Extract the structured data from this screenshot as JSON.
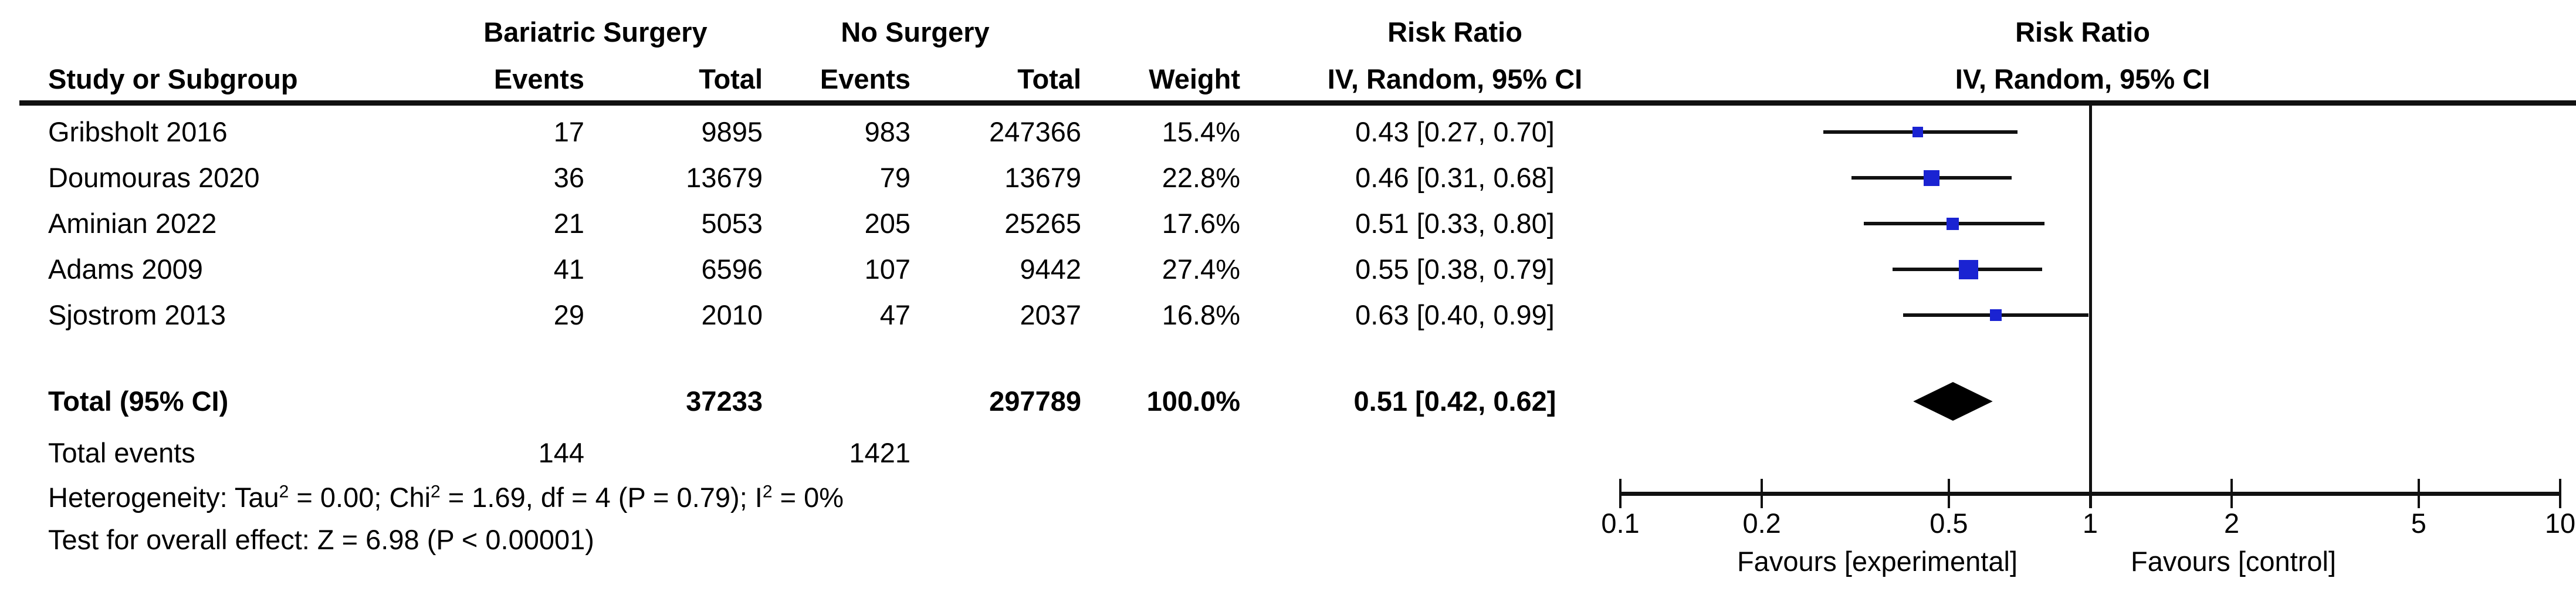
{
  "header": {
    "group1": "Bariatric Surgery",
    "group2": "No Surgery",
    "effect_title": "Risk Ratio",
    "effect_sub": "IV, Random, 95% CI",
    "plot_title": "Risk Ratio",
    "plot_sub": "IV, Random, 95% CI",
    "study_col": "Study or Subgroup",
    "events_col": "Events",
    "total_col": "Total",
    "events2_col": "Events",
    "total2_col": "Total",
    "weight_col": "Weight"
  },
  "totals": {
    "label": "Total (95% CI)",
    "total1": "37233",
    "total2": "297789",
    "weight": "100.0%",
    "ci_text": "0.51 [0.42, 0.62]",
    "events_label": "Total events",
    "events1": "144",
    "events2": "1421"
  },
  "footnotes": {
    "het_p1": "Heterogeneity: Tau",
    "het_s1": "2",
    "het_p2": " = 0.00; Chi",
    "het_s2": "2",
    "het_p3": " = 1.69, df = 4 (P = 0.79); I",
    "het_s3": "2",
    "het_p4": " = 0%",
    "test": "Test for overall effect: Z = 6.98 (P < 0.00001)"
  },
  "chart_data": {
    "type": "forest",
    "scale": "log",
    "x_axis_ticks": [
      0.1,
      0.2,
      0.5,
      1,
      2,
      5,
      10
    ],
    "null_line": 1,
    "favours_left": "Favours [experimental]",
    "favours_right": "Favours [control]",
    "marker_color": "#1a23d2",
    "studies": [
      {
        "name": "Gribsholt 2016",
        "events1": "17",
        "total1": "9895",
        "events2": "983",
        "total2": "247366",
        "weight": "15.4%",
        "weight_pct": 15.4,
        "rr": 0.43,
        "ci_low": 0.27,
        "ci_high": 0.7,
        "ci_text": "0.43 [0.27, 0.70]"
      },
      {
        "name": "Doumouras 2020",
        "events1": "36",
        "total1": "13679",
        "events2": "79",
        "total2": "13679",
        "weight": "22.8%",
        "weight_pct": 22.8,
        "rr": 0.46,
        "ci_low": 0.31,
        "ci_high": 0.68,
        "ci_text": "0.46 [0.31, 0.68]"
      },
      {
        "name": "Aminian 2022",
        "events1": "21",
        "total1": "5053",
        "events2": "205",
        "total2": "25265",
        "weight": "17.6%",
        "weight_pct": 17.6,
        "rr": 0.51,
        "ci_low": 0.33,
        "ci_high": 0.8,
        "ci_text": "0.51 [0.33, 0.80]"
      },
      {
        "name": "Adams 2009",
        "events1": "41",
        "total1": "6596",
        "events2": "107",
        "total2": "9442",
        "weight": "27.4%",
        "weight_pct": 27.4,
        "rr": 0.55,
        "ci_low": 0.38,
        "ci_high": 0.79,
        "ci_text": "0.55 [0.38, 0.79]"
      },
      {
        "name": "Sjostrom 2013",
        "events1": "29",
        "total1": "2010",
        "events2": "47",
        "total2": "2037",
        "weight": "16.8%",
        "weight_pct": 16.8,
        "rr": 0.63,
        "ci_low": 0.4,
        "ci_high": 0.99,
        "ci_text": "0.63 [0.40, 0.99]"
      }
    ],
    "overall": {
      "rr": 0.51,
      "ci_low": 0.42,
      "ci_high": 0.62
    }
  }
}
